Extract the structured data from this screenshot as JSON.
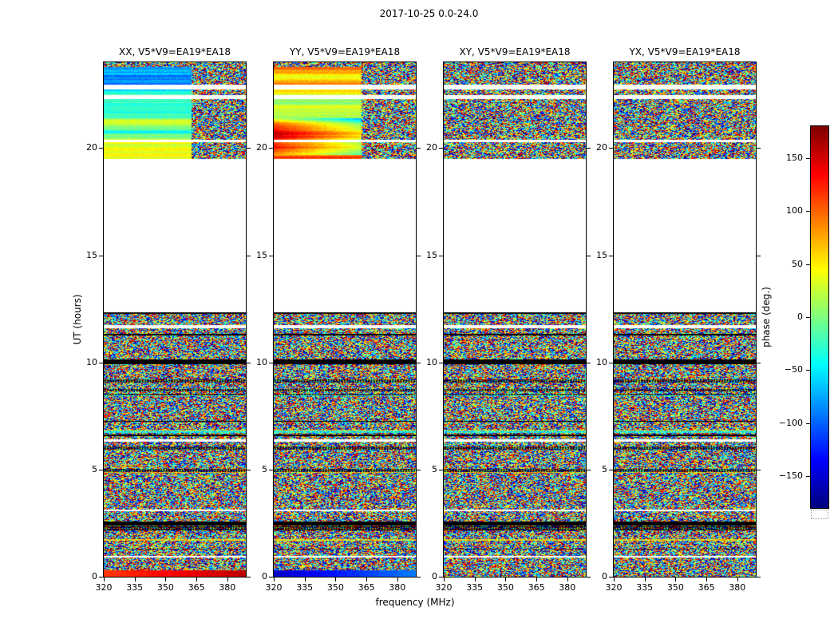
{
  "figure": {
    "title": "2017-10-25 0.0-24.0",
    "xlabel": "frequency (MHz)",
    "ylabel": "UT (hours)",
    "colorbar_label": "phase (deg.)",
    "background": "#ffffff"
  },
  "chart_data": {
    "type": "heatmap",
    "title": "2017-10-25 0.0-24.0",
    "date": "2017-10-25",
    "ut_span": "0.0-24.0",
    "baseline": "V5*V9=EA19*EA18",
    "panels": [
      {
        "pol": "XX",
        "title": "XX, V5*V9=EA19*EA18"
      },
      {
        "pol": "YY",
        "title": "YY, V5*V9=EA19*EA18"
      },
      {
        "pol": "XY",
        "title": "XY, V5*V9=EA19*EA18"
      },
      {
        "pol": "YX",
        "title": "YX, V5*V9=EA19*EA18"
      }
    ],
    "x_axis": {
      "label": "frequency (MHz)",
      "unit": "MHz",
      "min": 320,
      "max": 389,
      "ticks": [
        320,
        335,
        350,
        365,
        380
      ],
      "tick_labels": [
        "320",
        "335",
        "350",
        "365",
        "380"
      ]
    },
    "y_axis": {
      "label": "UT (hours)",
      "unit": "hours",
      "min": 0,
      "max": 24,
      "ticks": [
        0,
        5,
        10,
        15,
        20
      ],
      "tick_labels": [
        "0",
        "5",
        "10",
        "15",
        "20"
      ]
    },
    "colorbar": {
      "label": "phase (deg.)",
      "min": -180,
      "max": 180,
      "ticks": [
        150,
        100,
        50,
        0,
        -50,
        -100,
        -150
      ],
      "tick_labels": [
        "150",
        "100",
        "50",
        "0",
        "−50",
        "−100",
        "−150"
      ],
      "colormap": "jet"
    },
    "regions": [
      {
        "ut_range": [
          0,
          12.4
        ],
        "content": "dense random phase speckle with horizontal black dropout lines and thin white gaps, aligned across all four panels; lowest scan shows smooth phase (XX red/orange, YY dark blue)"
      },
      {
        "ut_range": [
          12.4,
          19.5
        ],
        "content": "no data (blank white)"
      },
      {
        "ut_range": [
          19.5,
          24
        ],
        "content": "XX and YY show smooth slowly-varying phase below ~355 MHz (XX blue/green/yellow bands, YY green and strong orange-red bands) with random speckle at higher frequencies; XY and YX fully random speckle; shared thin white gaps near 22 UT"
      }
    ]
  }
}
